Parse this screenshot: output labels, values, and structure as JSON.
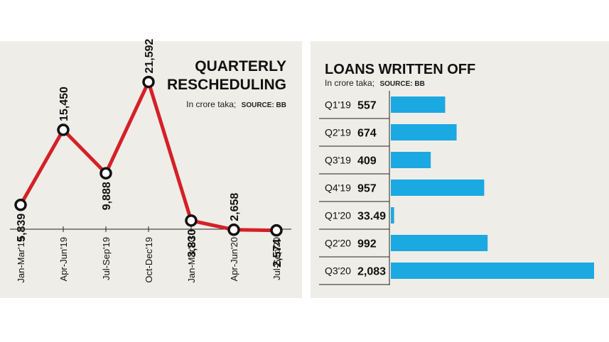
{
  "chart_data": [
    {
      "type": "line",
      "title_lines": [
        "QUARTERLY",
        "RESCHEDULING"
      ],
      "subtitle": "In crore taka;",
      "source": "SOURCE: BB",
      "categories": [
        "Jan-Mar'19",
        "Apr-Jun'19",
        "Jul-Sep'19",
        "Oct-Dec'19",
        "Jan-Mar'20",
        "Apr-Jun'20",
        "Jul-Sep'20"
      ],
      "values": [
        5839,
        15450,
        9888,
        21592,
        3830,
        2658,
        2574
      ],
      "value_labels": [
        "5,839",
        "15,450",
        "9,888",
        "21,592",
        "3,830",
        "2,658",
        "2,574"
      ],
      "ylim": [
        0,
        25000
      ],
      "colors": {
        "line": "#d42027",
        "marker_fill": "#ffffff",
        "marker_stroke": "#111111"
      }
    },
    {
      "type": "bar",
      "orientation": "horizontal",
      "title": "LOANS WRITTEN OFF",
      "subtitle": "In crore taka;",
      "source": "SOURCE: BB",
      "categories": [
        "Q1'19",
        "Q2'19",
        "Q3'19",
        "Q4'19",
        "Q1'20",
        "Q2'20",
        "Q3'20"
      ],
      "values": [
        557,
        674,
        409,
        957,
        33.49,
        992,
        2083
      ],
      "value_labels": [
        "557",
        "674",
        "409",
        "957",
        "33.49",
        "992",
        "2,083"
      ],
      "xlim": [
        0,
        2083
      ],
      "colors": {
        "bar": "#1ba9e1"
      }
    }
  ]
}
